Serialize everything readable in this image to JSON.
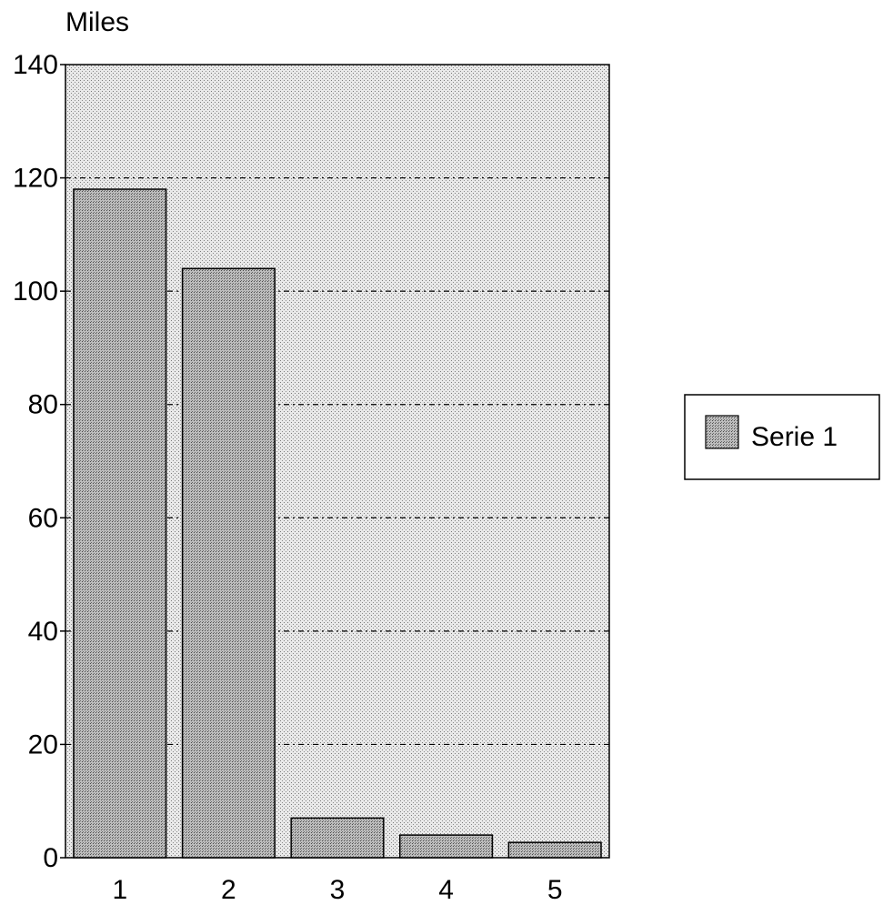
{
  "chart_data": {
    "type": "bar",
    "categories": [
      "1",
      "2",
      "3",
      "4",
      "5"
    ],
    "series": [
      {
        "name": "Serie 1",
        "values": [
          118,
          104,
          7,
          4,
          2.7
        ]
      }
    ],
    "ylabel": "Miles",
    "xlabel": "",
    "ylim": [
      0,
      140
    ],
    "yticks": [
      "0",
      "20",
      "40",
      "60",
      "80",
      "100",
      "120",
      "140"
    ],
    "grid": true,
    "legend": "right"
  }
}
